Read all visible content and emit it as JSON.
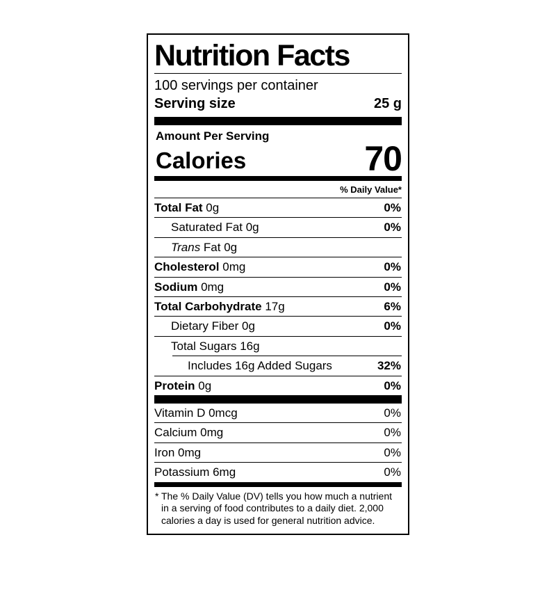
{
  "colors": {
    "text": "#000000",
    "background": "#ffffff",
    "border": "#000000"
  },
  "label": {
    "title": "Nutrition Facts",
    "servings_per_container": "100 servings per container",
    "serving_size_label": "Serving size",
    "serving_size_value": "25 g",
    "amount_per_serving": "Amount Per Serving",
    "calories_label": "Calories",
    "calories_value": "70",
    "daily_value_header": "% Daily Value*",
    "rows": [
      {
        "italic": "",
        "bold": "Total Fat",
        "regular": " 0g",
        "percent": "0%"
      },
      {
        "italic": "",
        "bold": "",
        "regular": "Saturated Fat 0g",
        "percent": "0%"
      },
      {
        "italic": "Trans",
        "bold": "",
        "regular": " Fat 0g",
        "percent": ""
      },
      {
        "italic": "",
        "bold": "Cholesterol",
        "regular": " 0mg",
        "percent": "0%"
      },
      {
        "italic": "",
        "bold": "Sodium",
        "regular": " 0mg",
        "percent": "0%"
      },
      {
        "italic": "",
        "bold": "Total Carbohydrate",
        "regular": " 17g",
        "percent": "6%"
      },
      {
        "italic": "",
        "bold": "",
        "regular": "Dietary Fiber 0g",
        "percent": "0%"
      },
      {
        "italic": "",
        "bold": "",
        "regular": "Total Sugars 16g",
        "percent": ""
      },
      {
        "italic": "",
        "bold": "",
        "regular": "Includes 16g Added Sugars",
        "percent": "32%"
      },
      {
        "italic": "",
        "bold": "Protein",
        "regular": " 0g",
        "percent": "0%"
      }
    ],
    "vitamins": [
      {
        "regular": "Vitamin D 0mcg",
        "percent": "0%"
      },
      {
        "regular": "Calcium 0mg",
        "percent": "0%"
      },
      {
        "regular": "Iron 0mg",
        "percent": "0%"
      },
      {
        "regular": "Potassium 6mg",
        "percent": "0%"
      }
    ],
    "footnote_marker": "*",
    "footnote": "The % Daily Value (DV) tells you how much a nutrient in a serving of food contributes to a daily diet. 2,000 calories a day is used for general nutrition advice."
  }
}
